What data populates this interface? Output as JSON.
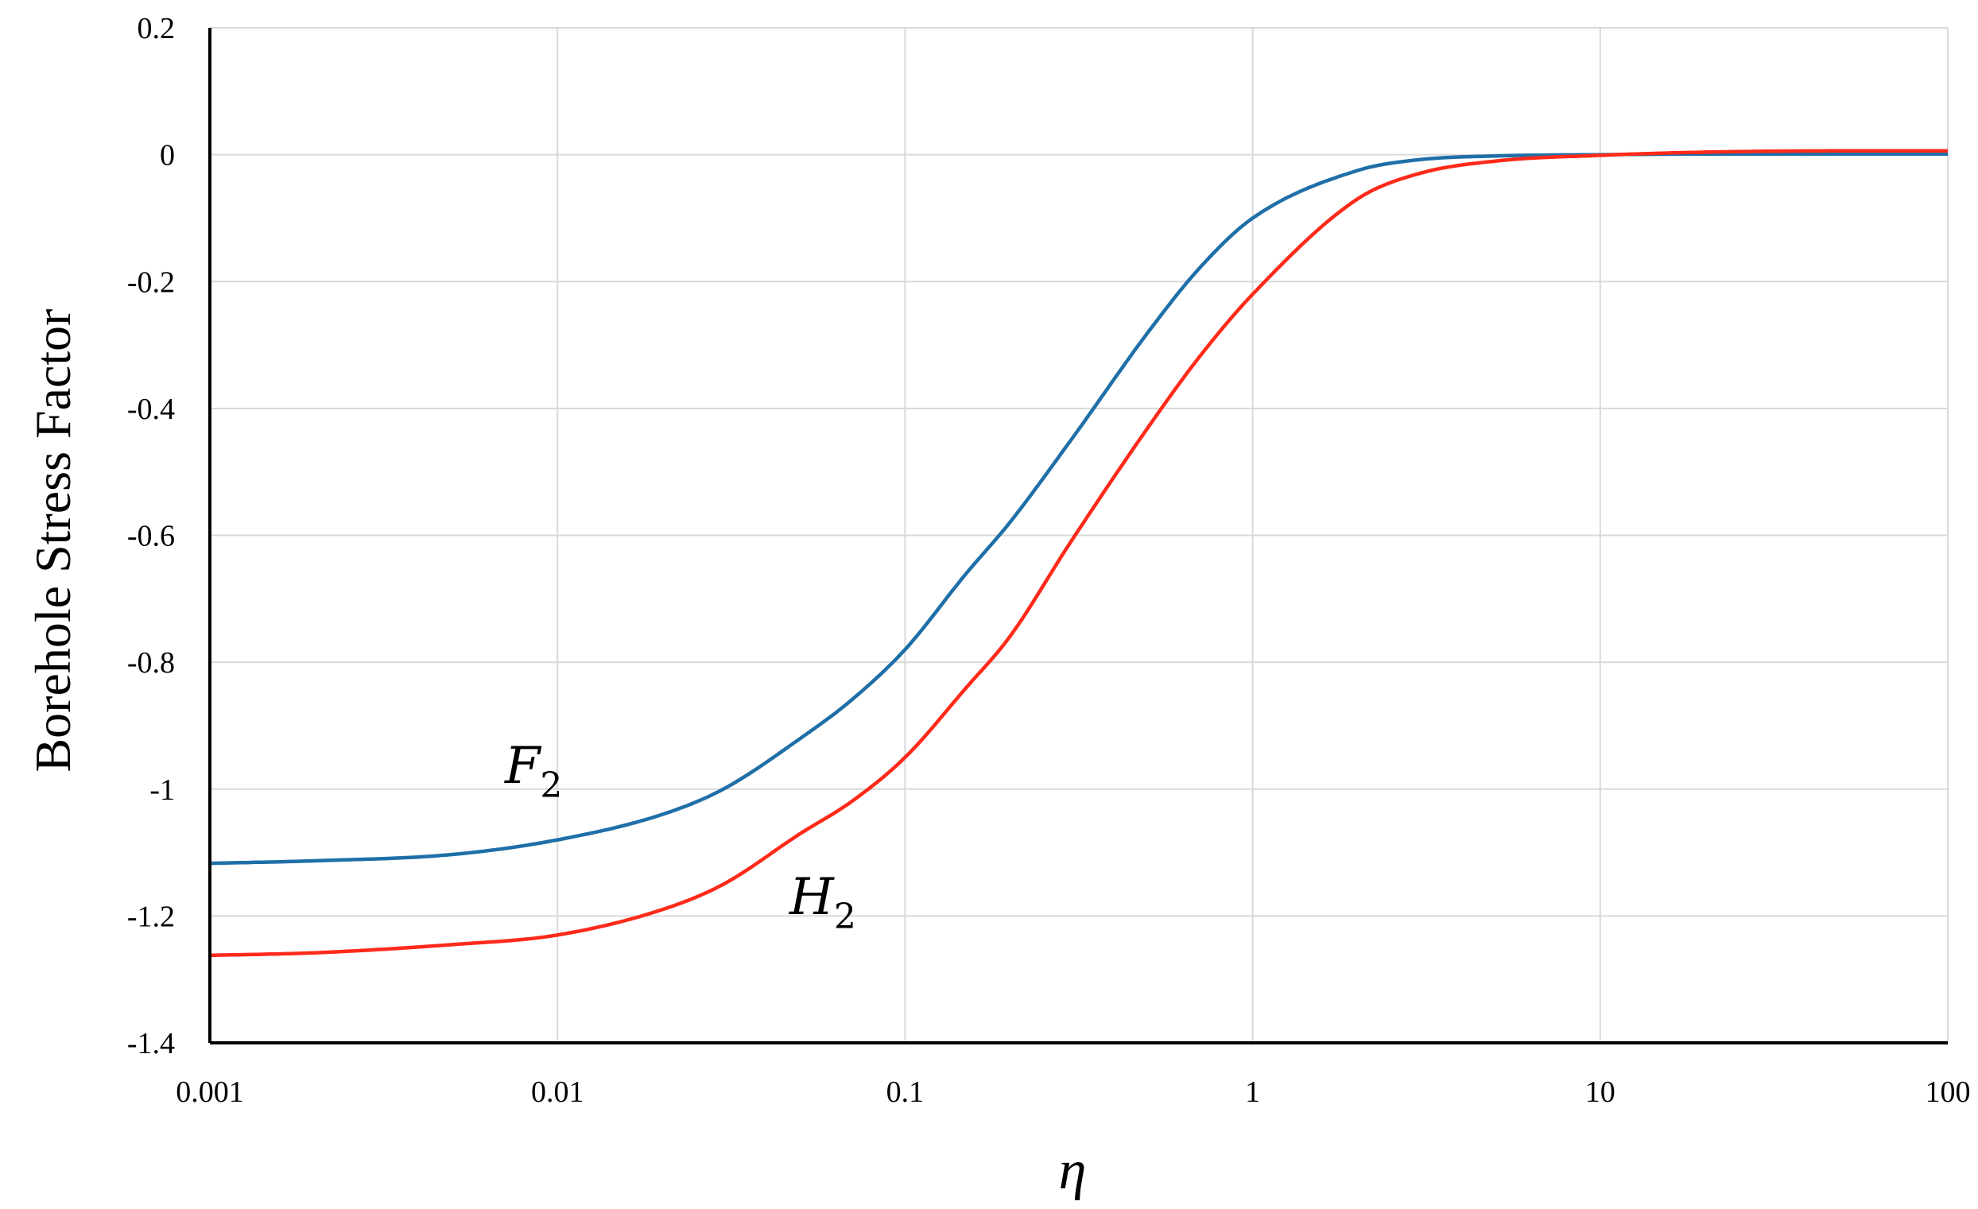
{
  "chart_data": {
    "type": "line",
    "title": "",
    "xlabel": "η",
    "ylabel": "Borehole Stress Factor",
    "xscale": "log",
    "xlim": [
      0.001,
      100
    ],
    "ylim": [
      -1.4,
      0.2
    ],
    "x_ticks": [
      "0.001",
      "0.01",
      "0.1",
      "1",
      "10",
      "100"
    ],
    "y_ticks": [
      "0.2",
      "0",
      "-0.2",
      "-0.4",
      "-0.6",
      "-0.8",
      "-1",
      "-1.2",
      "-1.4"
    ],
    "grid": true,
    "legend": "none",
    "series": [
      {
        "name": "F",
        "subscript": "2",
        "color": "#1f6fa8",
        "x": [
          0.001,
          0.002,
          0.005,
          0.01,
          0.02,
          0.03,
          0.05,
          0.07,
          0.1,
          0.15,
          0.2,
          0.3,
          0.5,
          0.7,
          1,
          2,
          3,
          5,
          10,
          20,
          50,
          100
        ],
        "y": [
          -1.117,
          -1.113,
          -1.103,
          -1.08,
          -1.04,
          -1.0,
          -0.92,
          -0.86,
          -0.78,
          -0.66,
          -0.58,
          -0.45,
          -0.28,
          -0.18,
          -0.1,
          -0.025,
          -0.008,
          -0.002,
          0.0,
          0.001,
          0.001,
          0.001
        ]
      },
      {
        "name": "H",
        "subscript": "2",
        "color": "#ff2a1a",
        "x": [
          0.001,
          0.002,
          0.005,
          0.01,
          0.02,
          0.03,
          0.05,
          0.07,
          0.1,
          0.15,
          0.2,
          0.3,
          0.5,
          0.7,
          1,
          2,
          3,
          5,
          10,
          20,
          50,
          100
        ],
        "y": [
          -1.262,
          -1.258,
          -1.245,
          -1.23,
          -1.19,
          -1.15,
          -1.07,
          -1.02,
          -0.95,
          -0.84,
          -0.76,
          -0.61,
          -0.43,
          -0.32,
          -0.22,
          -0.07,
          -0.03,
          -0.01,
          -0.001,
          0.004,
          0.006,
          0.006
        ]
      }
    ]
  }
}
